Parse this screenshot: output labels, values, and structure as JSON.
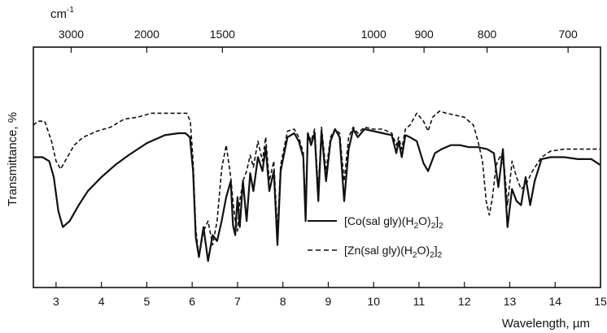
{
  "chart_data": {
    "type": "line",
    "xlabel": "Wavelength, µm",
    "ylabel": "Transmittance, %",
    "top_axis_label": "cm",
    "top_axis_label_sup": "-1",
    "xlim": [
      2.5,
      15
    ],
    "ylim": [
      0,
      100
    ],
    "x_ticks": [
      3,
      4,
      5,
      6,
      7,
      8,
      9,
      10,
      11,
      12,
      13,
      14,
      15
    ],
    "top_ticks": [
      {
        "label": "3000",
        "wavenumber": 3000
      },
      {
        "label": "2000",
        "wavenumber": 2000
      },
      {
        "label": "1500",
        "wavenumber": 1500
      },
      {
        "label": "1000",
        "wavenumber": 1000
      },
      {
        "label": "900",
        "wavenumber": 900
      },
      {
        "label": "800",
        "wavenumber": 800
      },
      {
        "label": "700",
        "wavenumber": 700
      }
    ],
    "legend_position": "center-right",
    "series": [
      {
        "name_prefix": "[Co(sal gly)(H",
        "name_sub1": "2",
        "name_mid": "O)",
        "name_sub2": "2",
        "name_close": "]",
        "name_sub3": "2",
        "style": "solid",
        "color": "#111111",
        "x": [
          2.5,
          2.7,
          2.85,
          2.95,
          3.05,
          3.15,
          3.3,
          3.5,
          3.7,
          4.0,
          4.3,
          4.6,
          5.0,
          5.4,
          5.7,
          5.85,
          5.95,
          6.02,
          6.08,
          6.15,
          6.25,
          6.35,
          6.45,
          6.55,
          6.65,
          6.75,
          6.85,
          6.9,
          6.95,
          7.0,
          7.05,
          7.12,
          7.2,
          7.28,
          7.35,
          7.45,
          7.55,
          7.62,
          7.7,
          7.8,
          7.88,
          7.95,
          8.1,
          8.25,
          8.35,
          8.45,
          8.5,
          8.55,
          8.62,
          8.7,
          8.78,
          8.85,
          8.95,
          9.05,
          9.15,
          9.25,
          9.35,
          9.45,
          9.55,
          9.65,
          9.8,
          10.0,
          10.2,
          10.4,
          10.5,
          10.55,
          10.62,
          10.7,
          10.8,
          10.95,
          11.1,
          11.2,
          11.35,
          11.5,
          11.7,
          11.9,
          12.1,
          12.3,
          12.5,
          12.65,
          12.75,
          12.85,
          12.95,
          13.05,
          13.15,
          13.25,
          13.35,
          13.45,
          13.55,
          13.7,
          13.9,
          14.2,
          14.5,
          14.8,
          15.0
        ],
        "y": [
          62,
          62,
          60,
          52,
          35,
          27,
          30,
          38,
          45,
          52,
          58,
          63,
          69,
          73,
          74,
          74,
          72,
          55,
          22,
          12,
          27,
          10,
          23,
          20,
          30,
          42,
          50,
          28,
          23,
          42,
          27,
          50,
          30,
          54,
          45,
          62,
          55,
          67,
          45,
          55,
          18,
          55,
          72,
          74,
          70,
          62,
          30,
          74,
          68,
          74,
          40,
          75,
          50,
          70,
          76,
          72,
          40,
          66,
          76,
          72,
          76,
          75,
          74,
          73,
          64,
          70,
          62,
          73,
          72,
          70,
          59,
          55,
          64,
          66,
          68,
          68,
          67,
          67,
          66,
          64,
          47,
          66,
          27,
          46,
          40,
          38,
          52,
          38,
          50,
          61,
          62,
          62,
          61,
          61,
          58
        ]
      },
      {
        "name_prefix": "[Zn(sal gly)(H",
        "name_sub1": "2",
        "name_mid": "O)",
        "name_sub2": "2",
        "name_close": "]",
        "name_sub3": "2",
        "style": "dashed",
        "color": "#111111",
        "x": [
          2.5,
          2.6,
          2.75,
          2.9,
          3.0,
          3.1,
          3.2,
          3.4,
          3.6,
          3.9,
          4.2,
          4.5,
          4.8,
          5.1,
          5.4,
          5.7,
          5.88,
          5.96,
          6.02,
          6.08,
          6.15,
          6.25,
          6.35,
          6.45,
          6.55,
          6.65,
          6.75,
          6.85,
          6.9,
          6.95,
          7.0,
          7.05,
          7.12,
          7.2,
          7.28,
          7.35,
          7.45,
          7.55,
          7.62,
          7.7,
          7.8,
          7.88,
          7.95,
          8.1,
          8.25,
          8.35,
          8.45,
          8.5,
          8.55,
          8.62,
          8.7,
          8.78,
          8.85,
          8.95,
          9.05,
          9.15,
          9.25,
          9.35,
          9.45,
          9.55,
          9.65,
          9.8,
          10.0,
          10.2,
          10.4,
          10.5,
          10.55,
          10.62,
          10.7,
          10.8,
          10.95,
          11.1,
          11.2,
          11.3,
          11.45,
          11.6,
          11.8,
          12.0,
          12.2,
          12.3,
          12.4,
          12.48,
          12.55,
          12.62,
          12.7,
          12.8,
          12.88,
          12.95,
          13.05,
          13.15,
          13.25,
          13.35,
          13.5,
          13.7,
          13.9,
          14.2,
          14.5,
          15.0
        ],
        "y": [
          78,
          80,
          80,
          70,
          60,
          56,
          60,
          68,
          72,
          75,
          77,
          81,
          82,
          84,
          84,
          84,
          84,
          80,
          60,
          26,
          12,
          25,
          30,
          18,
          30,
          56,
          68,
          52,
          40,
          30,
          25,
          40,
          50,
          55,
          63,
          57,
          70,
          60,
          72,
          50,
          60,
          25,
          58,
          75,
          76,
          72,
          64,
          33,
          74,
          70,
          76,
          45,
          77,
          55,
          72,
          76,
          74,
          50,
          72,
          77,
          74,
          77,
          76,
          76,
          74,
          68,
          72,
          66,
          76,
          78,
          84,
          80,
          75,
          82,
          85,
          84,
          83,
          82,
          78,
          70,
          60,
          40,
          33,
          42,
          58,
          63,
          57,
          38,
          60,
          52,
          46,
          48,
          55,
          62,
          65,
          66,
          66,
          66
        ]
      }
    ]
  }
}
